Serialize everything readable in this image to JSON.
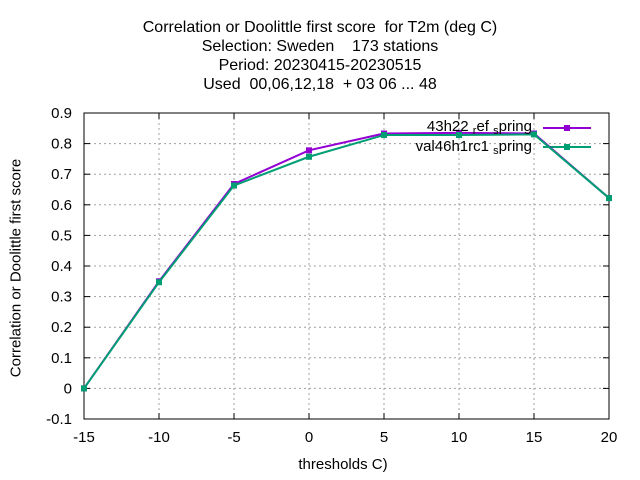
{
  "chart_data": {
    "type": "line",
    "title_lines": [
      "Correlation or Doolittle first score  for T2m (deg C)",
      "Selection: Sweden    173 stations",
      "Period: 20230415-20230515",
      "Used  00,06,12,18  + 03 06 ... 48"
    ],
    "xlabel": "thresholds C)",
    "ylabel": "Correlation or Doolittle first score",
    "x": [
      -15,
      -10,
      -5,
      0,
      5,
      10,
      15,
      20
    ],
    "xlim": [
      -15,
      20
    ],
    "ylim": [
      -0.1,
      0.9
    ],
    "xticks": [
      "-15",
      "-10",
      "-5",
      "0",
      "5",
      "10",
      "15",
      "20"
    ],
    "yticks": [
      "-0.1",
      "0",
      "0.1",
      "0.2",
      "0.3",
      "0.4",
      "0.5",
      "0.6",
      "0.7",
      "0.8",
      "0.9"
    ],
    "grid": true,
    "legend_position": "top-right",
    "series": [
      {
        "name_main": "43h22_r",
        "name_sub1": "r",
        "name_mid": "ef",
        "name_sub2": "s",
        "name_tail": "pring",
        "color": "#9400d3",
        "values": [
          0.0,
          0.35,
          0.668,
          0.778,
          0.833,
          0.835,
          0.833,
          0.622
        ]
      },
      {
        "name_main": "val46h1rc1",
        "name_sub1": "s",
        "name_tail": "pring",
        "color": "#009e73",
        "values": [
          0.0,
          0.347,
          0.663,
          0.757,
          0.828,
          0.828,
          0.83,
          0.622
        ]
      }
    ]
  }
}
